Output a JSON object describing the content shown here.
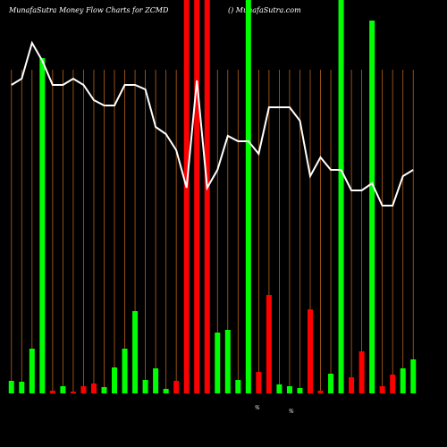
{
  "chart_data": {
    "type": "bar",
    "title": "MunafaSutra  Money Flow  Charts for ZCMD",
    "subtitle": "() MunafaSutra.com",
    "annotations": [
      "%",
      "%"
    ],
    "categories": [
      null,
      null,
      null,
      null,
      null,
      null,
      null,
      null,
      null,
      null,
      null,
      null,
      null,
      null,
      null,
      null,
      null,
      null,
      null,
      null,
      null,
      null,
      null,
      null,
      null,
      null,
      null,
      null,
      null,
      null,
      null,
      null,
      null,
      null,
      null,
      null,
      null,
      null,
      null,
      null
    ],
    "values": [
      14,
      13,
      50,
      375,
      3,
      8,
      2,
      8,
      11,
      7,
      29,
      50,
      92,
      15,
      28,
      5,
      14,
      440,
      440,
      440,
      68,
      71,
      15,
      440,
      24,
      110,
      10,
      8,
      6,
      94,
      3,
      22,
      440,
      18,
      47,
      417,
      8,
      21,
      28,
      38
    ],
    "colors": [
      "#00ff00",
      "#00ff00",
      "#00ff00",
      "#00ff00",
      "#ff0000",
      "#00ff00",
      "#ff0000",
      "#ff0000",
      "#ff0000",
      "#00ff00",
      "#00ff00",
      "#00ff00",
      "#00ff00",
      "#00ff00",
      "#00ff00",
      "#00ff00",
      "#ff0000",
      "#ff0000",
      "#ff0000",
      "#ff0000",
      "#00ff00",
      "#00ff00",
      "#00ff00",
      "#00ff00",
      "#ff0000",
      "#ff0000",
      "#00ff00",
      "#00ff00",
      "#00ff00",
      "#ff0000",
      "#ff0000",
      "#00ff00",
      "#00ff00",
      "#ff0000",
      "#ff0000",
      "#00ff00",
      "#ff0000",
      "#ff0000",
      "#00ff00",
      "#00ff00"
    ],
    "line": {
      "color": "#ffffff",
      "values": [
        345,
        352,
        392,
        372,
        345,
        345,
        352,
        345,
        328,
        322,
        322,
        345,
        345,
        340,
        298,
        290,
        272,
        230,
        350,
        230,
        250,
        288,
        282,
        282,
        268,
        320,
        320,
        320,
        305,
        243,
        264,
        250,
        250,
        227,
        227,
        235,
        210,
        210,
        243,
        250
      ]
    },
    "ylim": [
      0,
      440
    ]
  }
}
